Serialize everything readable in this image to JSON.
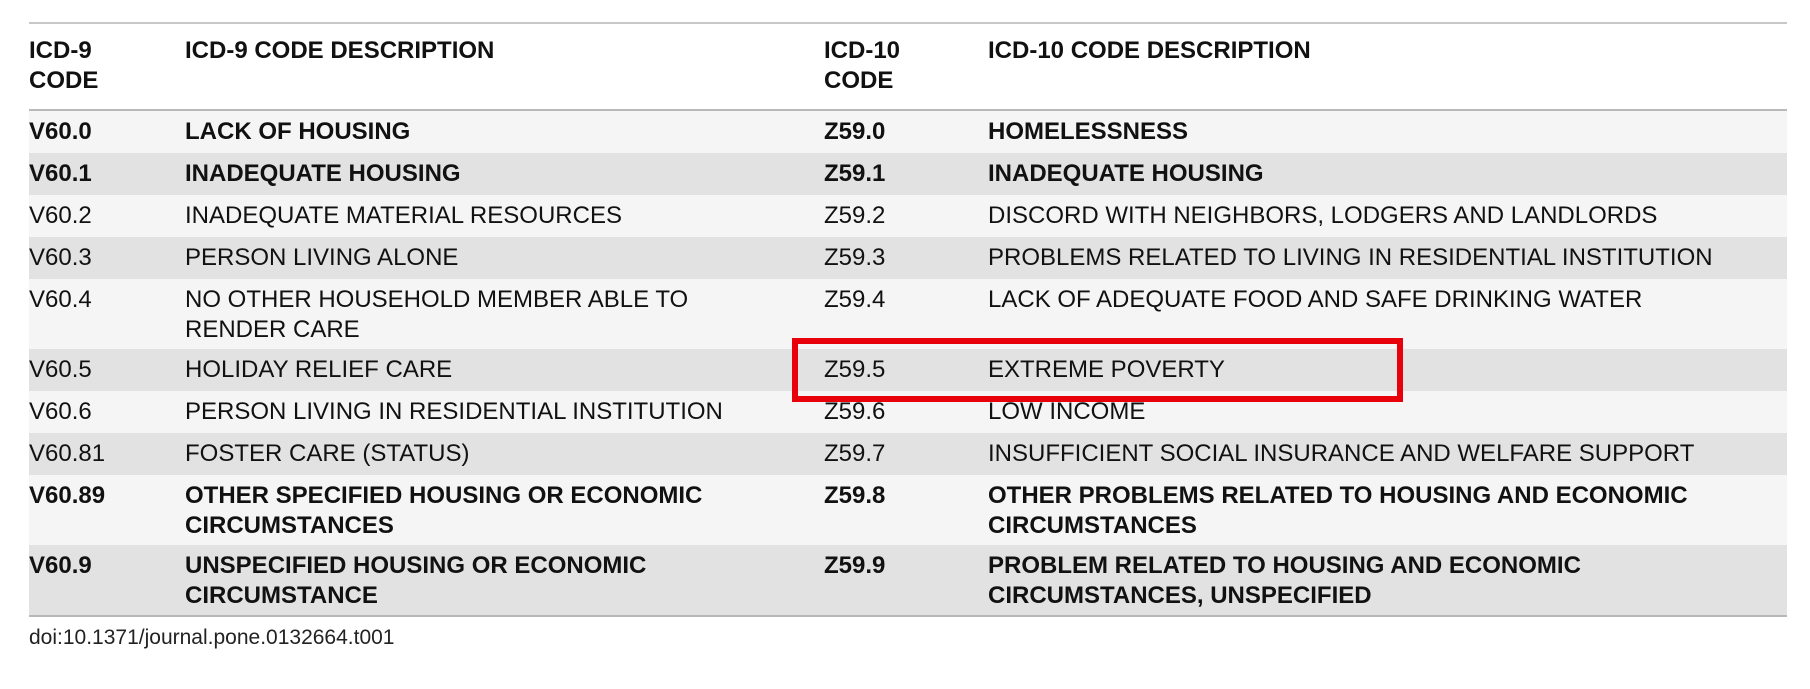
{
  "table": {
    "header": [
      "ICD-9 CODE",
      "ICD-9 CODE DESCRIPTION",
      "ICD-10 CODE",
      "ICD-10 CODE DESCRIPTION"
    ],
    "rows": [
      [
        "V60.0",
        "LACK OF HOUSING",
        "Z59.0",
        "HOMELESSNESS"
      ],
      [
        "V60.1",
        "INADEQUATE HOUSING",
        "Z59.1",
        "INADEQUATE HOUSING"
      ],
      [
        "V60.2",
        "INADEQUATE MATERIAL RESOURCES",
        "Z59.2",
        "DISCORD WITH NEIGHBORS, LODGERS AND LANDLORDS"
      ],
      [
        "V60.3",
        "PERSON LIVING ALONE",
        "Z59.3",
        "PROBLEMS RELATED TO LIVING IN RESIDENTIAL INSTITUTION"
      ],
      [
        "V60.4",
        "NO OTHER HOUSEHOLD MEMBER ABLE TO RENDER CARE",
        "Z59.4",
        "LACK OF ADEQUATE FOOD AND SAFE DRINKING WATER"
      ],
      [
        "V60.5",
        "HOLIDAY RELIEF CARE",
        "Z59.5",
        "EXTREME POVERTY"
      ],
      [
        "V60.6",
        "PERSON LIVING IN RESIDENTIAL INSTITUTION",
        "Z59.6",
        "LOW INCOME"
      ],
      [
        "V60.81",
        "FOSTER CARE (STATUS)",
        "Z59.7",
        "INSUFFICIENT SOCIAL INSURANCE AND WELFARE SUPPORT"
      ],
      [
        "V60.89",
        "OTHER SPECIFIED HOUSING OR ECONOMIC CIRCUMSTANCES",
        "Z59.8",
        "OTHER PROBLEMS RELATED TO HOUSING AND ECONOMIC CIRCUMSTANCES"
      ],
      [
        "V60.9",
        "UNSPECIFIED HOUSING OR ECONOMIC CIRCUMSTANCE",
        "Z59.9",
        "PROBLEM RELATED TO HOUSING AND ECONOMIC CIRCUMSTANCES, UNSPECIFIED"
      ]
    ]
  },
  "footer": {
    "doi": "doi:10.1371/journal.pone.0132664.t001"
  }
}
